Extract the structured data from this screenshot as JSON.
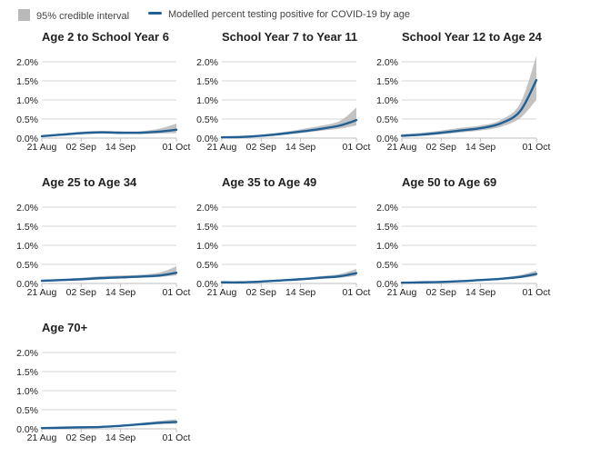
{
  "legend": {
    "interval_label": "95% credible interval",
    "line_label": "Modelled percent testing positive for COVID-19 by age",
    "interval_color": "#b9b9b9",
    "line_color": "#206095"
  },
  "chart_data": {
    "type": "line",
    "ylim": [
      0,
      2.0
    ],
    "y_ticks": [
      "0.0%",
      "0.5%",
      "1.0%",
      "1.5%",
      "2.0%"
    ],
    "x_ticks": [
      "21 Aug",
      "02 Sep",
      "14 Sep",
      "01 Oct"
    ],
    "x_range": [
      "2021-08-21",
      "2021-10-01"
    ],
    "grid": true,
    "legend_position": "top",
    "panels": [
      {
        "title": "Age 2 to School Year 6",
        "x": [
          "2021-08-21",
          "2021-08-27",
          "2021-09-02",
          "2021-09-08",
          "2021-09-14",
          "2021-09-20",
          "2021-09-26",
          "2021-10-01"
        ],
        "values": [
          0.05,
          0.09,
          0.13,
          0.15,
          0.14,
          0.14,
          0.17,
          0.22
        ],
        "lower": [
          0.03,
          0.07,
          0.1,
          0.12,
          0.11,
          0.11,
          0.12,
          0.13
        ],
        "upper": [
          0.08,
          0.12,
          0.17,
          0.19,
          0.18,
          0.18,
          0.25,
          0.38
        ]
      },
      {
        "title": "School Year 7 to Year 11",
        "x": [
          "2021-08-21",
          "2021-08-27",
          "2021-09-02",
          "2021-09-08",
          "2021-09-14",
          "2021-09-20",
          "2021-09-26",
          "2021-10-01"
        ],
        "values": [
          0.02,
          0.03,
          0.06,
          0.11,
          0.17,
          0.24,
          0.33,
          0.47
        ],
        "lower": [
          0.01,
          0.02,
          0.04,
          0.08,
          0.13,
          0.19,
          0.25,
          0.33
        ],
        "upper": [
          0.04,
          0.05,
          0.09,
          0.15,
          0.23,
          0.32,
          0.45,
          0.8
        ]
      },
      {
        "title": "School Year 12 to Age 24",
        "x": [
          "2021-08-21",
          "2021-08-27",
          "2021-09-02",
          "2021-09-08",
          "2021-09-14",
          "2021-09-20",
          "2021-09-26",
          "2021-10-01"
        ],
        "values": [
          0.06,
          0.09,
          0.14,
          0.2,
          0.26,
          0.38,
          0.7,
          1.52
        ],
        "lower": [
          0.04,
          0.06,
          0.1,
          0.15,
          0.2,
          0.29,
          0.52,
          1.0
        ],
        "upper": [
          0.1,
          0.14,
          0.2,
          0.27,
          0.33,
          0.47,
          0.9,
          2.15
        ]
      },
      {
        "title": "Age 25 to Age 34",
        "x": [
          "2021-08-21",
          "2021-08-27",
          "2021-09-02",
          "2021-09-08",
          "2021-09-14",
          "2021-09-20",
          "2021-09-26",
          "2021-10-01"
        ],
        "values": [
          0.07,
          0.09,
          0.11,
          0.14,
          0.16,
          0.18,
          0.21,
          0.28
        ],
        "lower": [
          0.05,
          0.07,
          0.09,
          0.11,
          0.13,
          0.15,
          0.17,
          0.21
        ],
        "upper": [
          0.1,
          0.12,
          0.15,
          0.19,
          0.21,
          0.23,
          0.29,
          0.45
        ]
      },
      {
        "title": "Age 35 to Age 49",
        "x": [
          "2021-08-21",
          "2021-08-27",
          "2021-09-02",
          "2021-09-08",
          "2021-09-14",
          "2021-09-20",
          "2021-09-26",
          "2021-10-01"
        ],
        "values": [
          0.03,
          0.03,
          0.05,
          0.08,
          0.11,
          0.15,
          0.19,
          0.27
        ],
        "lower": [
          0.02,
          0.02,
          0.03,
          0.06,
          0.09,
          0.12,
          0.15,
          0.2
        ],
        "upper": [
          0.05,
          0.05,
          0.07,
          0.1,
          0.14,
          0.19,
          0.25,
          0.38
        ]
      },
      {
        "title": "Age 50 to Age 69",
        "x": [
          "2021-08-21",
          "2021-08-27",
          "2021-09-02",
          "2021-09-08",
          "2021-09-14",
          "2021-09-20",
          "2021-09-26",
          "2021-10-01"
        ],
        "values": [
          0.02,
          0.03,
          0.04,
          0.06,
          0.09,
          0.12,
          0.17,
          0.25
        ],
        "lower": [
          0.01,
          0.02,
          0.03,
          0.05,
          0.07,
          0.1,
          0.14,
          0.19
        ],
        "upper": [
          0.03,
          0.04,
          0.06,
          0.08,
          0.11,
          0.15,
          0.22,
          0.34
        ]
      },
      {
        "title": "Age 70+",
        "x": [
          "2021-08-21",
          "2021-08-27",
          "2021-09-02",
          "2021-09-08",
          "2021-09-14",
          "2021-09-20",
          "2021-09-26",
          "2021-10-01"
        ],
        "values": [
          0.02,
          0.03,
          0.04,
          0.05,
          0.08,
          0.12,
          0.16,
          0.18
        ],
        "lower": [
          0.01,
          0.02,
          0.03,
          0.04,
          0.06,
          0.09,
          0.12,
          0.13
        ],
        "upper": [
          0.03,
          0.04,
          0.06,
          0.07,
          0.1,
          0.15,
          0.21,
          0.25
        ]
      }
    ]
  }
}
